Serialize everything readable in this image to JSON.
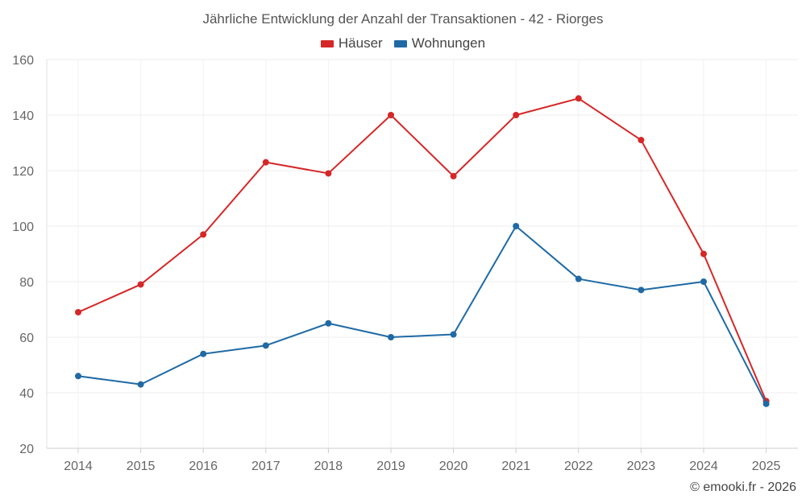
{
  "chart_data": {
    "type": "line",
    "title": "Jährliche Entwicklung der Anzahl der Transaktionen - 42 - Riorges",
    "xlabel": "",
    "ylabel": "",
    "categories": [
      "2014",
      "2015",
      "2016",
      "2017",
      "2018",
      "2019",
      "2020",
      "2021",
      "2022",
      "2023",
      "2024",
      "2025"
    ],
    "ylim": [
      20,
      160
    ],
    "yticks": [
      20,
      40,
      60,
      80,
      100,
      120,
      140,
      160
    ],
    "grid": true,
    "legend_position": "top-center",
    "series": [
      {
        "name": "Häuser",
        "color": "#d62728",
        "values": [
          69,
          79,
          97,
          123,
          119,
          140,
          118,
          140,
          146,
          131,
          90,
          37
        ]
      },
      {
        "name": "Wohnungen",
        "color": "#1f6aa5",
        "values": [
          46,
          43,
          54,
          57,
          65,
          60,
          61,
          100,
          81,
          77,
          80,
          36
        ]
      }
    ]
  },
  "credit": "© emooki.fr - 2026"
}
